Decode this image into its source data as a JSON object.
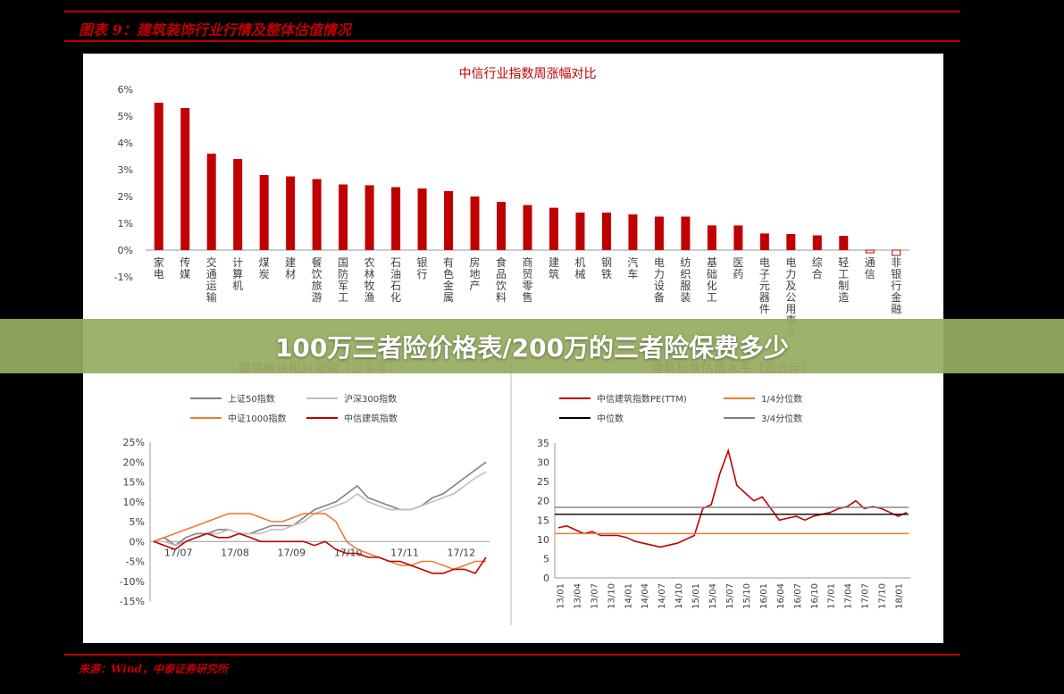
{
  "figure": {
    "title": "图表 9：建筑装饰行业行情及整体估值情况",
    "source": "来源：Wind，中泰证券研究所"
  },
  "banner": {
    "text": "100万三者险价格表/200万的三者险保费多少"
  },
  "colors": {
    "accent": "#c00000",
    "panel": "#ffffff",
    "background": "#000000",
    "banner": "#96ac60"
  },
  "chart_data": [
    {
      "type": "bar",
      "title": "中信行业指数周涨幅对比",
      "ylim": [
        -1,
        6
      ],
      "y_ticks": [
        6,
        5,
        4,
        3,
        2,
        1,
        0,
        -1
      ],
      "y_tick_labels": [
        "6%",
        "5%",
        "4%",
        "3%",
        "2%",
        "1%",
        "0%",
        "-1%"
      ],
      "categories": [
        "家电",
        "传媒",
        "交通运输",
        "计算机",
        "煤炭",
        "建材",
        "餐饮旅游",
        "国防军工",
        "农林牧渔",
        "石油石化",
        "银行",
        "有色金属",
        "房地产",
        "食品饮料",
        "商贸零售",
        "建筑",
        "机械",
        "钢铁",
        "汽车",
        "电力设备",
        "纺织服装",
        "基础化工",
        "医药",
        "电子元器件",
        "电力及公用事业",
        "综合",
        "轻工制造",
        "通信",
        "非银行金融"
      ],
      "values": [
        5.5,
        5.3,
        3.6,
        3.4,
        2.8,
        2.75,
        2.65,
        2.45,
        2.42,
        2.35,
        2.3,
        2.2,
        2.0,
        1.8,
        1.68,
        1.58,
        1.4,
        1.4,
        1.33,
        1.25,
        1.25,
        0.92,
        0.92,
        0.62,
        0.6,
        0.55,
        0.53,
        -0.1,
        -0.2
      ],
      "color": "#c00000",
      "grid": false
    },
    {
      "type": "line",
      "title": "建筑板块相对涨幅（近半年）",
      "ylim": [
        -15,
        25
      ],
      "y_ticks": [
        25,
        20,
        15,
        10,
        5,
        0,
        -5,
        -10,
        -15
      ],
      "y_tick_labels": [
        "25%",
        "20%",
        "15%",
        "10%",
        "5%",
        "0%",
        "-5%",
        "-10%",
        "-15%"
      ],
      "x_ticks": [
        "17/07",
        "17/08",
        "17/09",
        "17/10",
        "17/11",
        "17/12"
      ],
      "legend_position": "top",
      "series": [
        {
          "name": "上证50指数",
          "color": "#808080",
          "values": [
            0,
            1,
            -1,
            1,
            2,
            2,
            3,
            3,
            2,
            2,
            3,
            4,
            4,
            4,
            6,
            8,
            9,
            10,
            12,
            14,
            11,
            10,
            9,
            8,
            8,
            9,
            11,
            12,
            14,
            16,
            18,
            20
          ]
        },
        {
          "name": "沪深300指数",
          "color": "#bfbfbf",
          "values": [
            0,
            0,
            -1,
            0,
            1,
            2,
            2,
            3,
            2,
            2,
            2,
            3,
            3,
            4,
            5,
            7,
            8,
            9,
            10,
            12,
            10,
            9,
            8,
            8,
            8,
            9,
            10,
            11,
            12,
            14,
            16,
            17.5
          ]
        },
        {
          "name": "中证1000指数",
          "color": "#ed7d31",
          "values": [
            0,
            1,
            2,
            3,
            4,
            5,
            6,
            7,
            7,
            7,
            6,
            5,
            5,
            6,
            7,
            7,
            7,
            5,
            0,
            -2,
            -3,
            -4,
            -5,
            -6,
            -6,
            -5,
            -5,
            -6,
            -7,
            -6,
            -5,
            -5
          ]
        },
        {
          "name": "中信建筑指数",
          "color": "#c00000",
          "values": [
            0,
            -1,
            -2,
            0,
            1,
            2,
            1,
            1,
            2,
            1,
            0,
            0,
            0,
            0,
            0,
            -1,
            0,
            -2,
            -3,
            -3,
            -4,
            -4,
            -5,
            -5,
            -6,
            -7,
            -8,
            -8,
            -7,
            -7,
            -8,
            -4
          ]
        }
      ]
    },
    {
      "type": "line",
      "title": "建筑板块估值水平（近五年）",
      "ylim": [
        0,
        35
      ],
      "y_ticks": [
        35,
        30,
        25,
        20,
        15,
        10,
        5,
        0
      ],
      "x_ticks": [
        "13/01",
        "13/04",
        "13/07",
        "13/10",
        "14/01",
        "14/04",
        "14/07",
        "14/10",
        "15/01",
        "15/04",
        "15/07",
        "15/10",
        "16/01",
        "16/04",
        "16/07",
        "16/10",
        "17/01",
        "17/04",
        "17/07",
        "17/10",
        "18/01"
      ],
      "legend_position": "top",
      "series": [
        {
          "name": "中信建筑指数PE(TTM)",
          "color": "#c00000",
          "values": [
            13,
            13.5,
            12.5,
            11.5,
            12,
            11,
            11,
            11,
            10.5,
            9.5,
            9,
            8.5,
            8,
            8.5,
            9,
            10,
            11,
            18,
            19,
            27,
            33,
            24,
            22,
            20,
            21,
            18,
            15,
            15.5,
            16,
            15,
            16,
            16.5,
            17,
            18,
            18.5,
            20,
            18,
            18.5,
            18,
            17,
            16,
            17
          ]
        },
        {
          "name": "1/4分位数",
          "color": "#ed7d31",
          "values": [
            11.5
          ]
        },
        {
          "name": "中位数",
          "color": "#000000",
          "values": [
            16.5
          ]
        },
        {
          "name": "3/4分位数",
          "color": "#808080",
          "values": [
            18.3
          ]
        }
      ]
    }
  ]
}
